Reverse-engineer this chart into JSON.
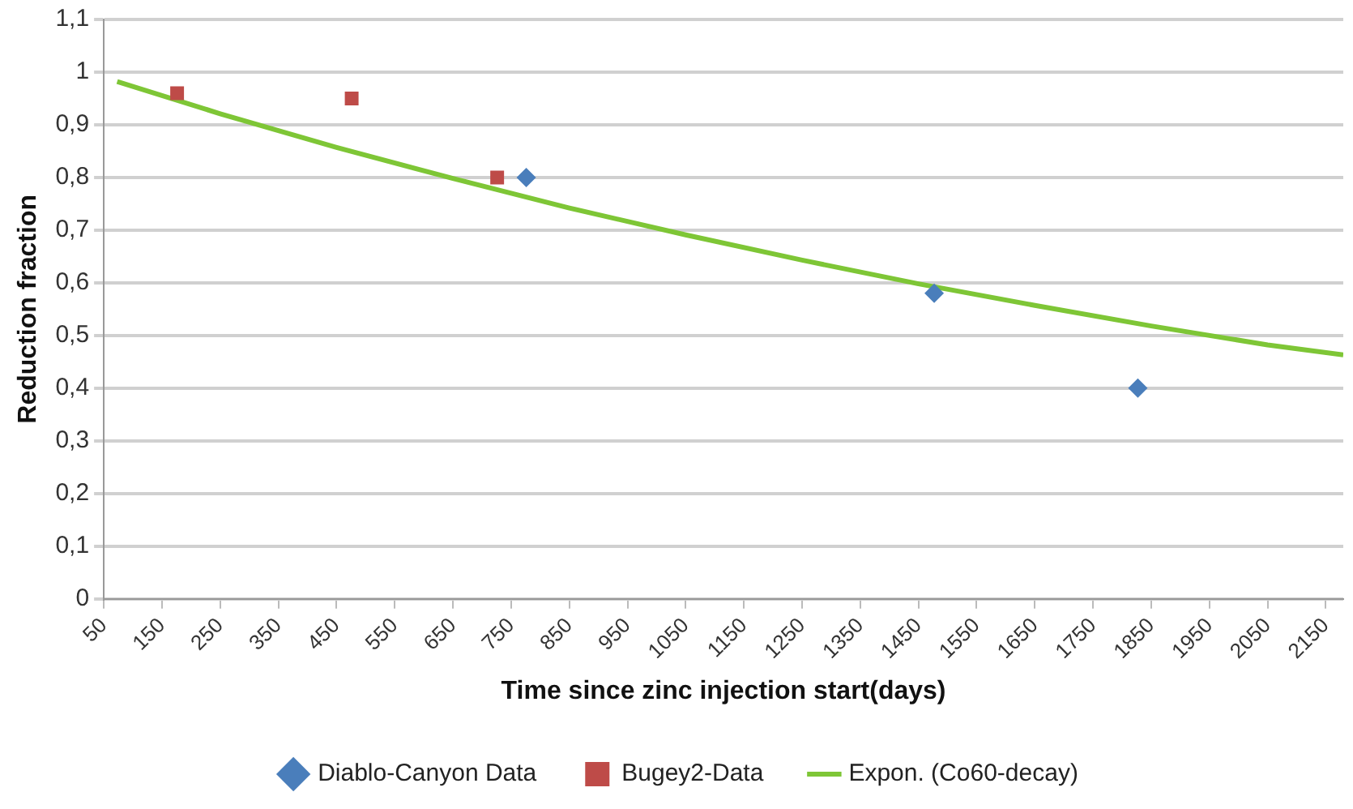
{
  "chart_data": {
    "type": "scatter",
    "xlabel": "Time since zinc injection start(days)",
    "ylabel": "Reduction fraction",
    "xlim": [
      50,
      2180
    ],
    "xticks": [
      50,
      150,
      250,
      350,
      450,
      550,
      650,
      750,
      850,
      950,
      1050,
      1150,
      1250,
      1350,
      1450,
      1550,
      1650,
      1750,
      1850,
      1950,
      2050,
      2150
    ],
    "ylim": [
      0,
      1.1
    ],
    "yticks": [
      {
        "value": 0,
        "label": "0"
      },
      {
        "value": 0.1,
        "label": "0,1"
      },
      {
        "value": 0.2,
        "label": "0,2"
      },
      {
        "value": 0.3,
        "label": "0,3"
      },
      {
        "value": 0.4,
        "label": "0,4"
      },
      {
        "value": 0.5,
        "label": "0,5"
      },
      {
        "value": 0.6,
        "label": "0,6"
      },
      {
        "value": 0.7,
        "label": "0,7"
      },
      {
        "value": 0.8,
        "label": "0,8"
      },
      {
        "value": 0.9,
        "label": "0,9"
      },
      {
        "value": 1,
        "label": "1"
      },
      {
        "value": 1.1,
        "label": "1,1"
      }
    ],
    "grid": "y",
    "legend": "bottom",
    "series": [
      {
        "name": "Diablo-Canyon Data",
        "marker": "diamond",
        "color": "#4a7ebb",
        "x": [
          776,
          1477,
          1827
        ],
        "values": [
          0.8,
          0.58,
          0.4
        ]
      },
      {
        "name": "Bugey2-Data",
        "marker": "square",
        "color": "#be4b48",
        "x": [
          176,
          476,
          726
        ],
        "values": [
          0.96,
          0.95,
          0.8
        ]
      },
      {
        "name": "Expon. (Co60-decay)",
        "type": "line",
        "marker": "none",
        "color": "#7ec636",
        "x": [
          73,
          250,
          450,
          650,
          850,
          1050,
          1250,
          1450,
          1650,
          1850,
          2050,
          2180
        ],
        "values": [
          0.982,
          0.921,
          0.857,
          0.798,
          0.742,
          0.691,
          0.643,
          0.598,
          0.557,
          0.518,
          0.482,
          0.463
        ]
      }
    ]
  }
}
